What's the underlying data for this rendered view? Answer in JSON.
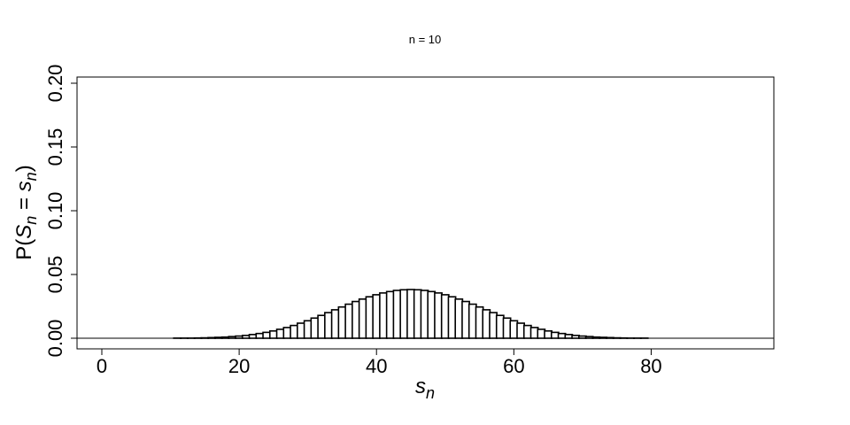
{
  "chart_data": {
    "type": "bar",
    "title": "n = 10",
    "xlabel": "s_n",
    "ylabel": "P(S_n = s_n)",
    "xlim": [
      0,
      90
    ],
    "ylim": [
      0,
      0.2
    ],
    "x_ticks": [
      "0",
      "20",
      "40",
      "60",
      "80"
    ],
    "y_ticks": [
      "0.00",
      "0.05",
      "0.10",
      "0.15",
      "0.20"
    ],
    "grid": false,
    "legend": "none",
    "x": [
      0,
      1,
      2,
      3,
      4,
      5,
      6,
      7,
      8,
      9,
      10,
      11,
      12,
      13,
      14,
      15,
      16,
      17,
      18,
      19,
      20,
      21,
      22,
      23,
      24,
      25,
      26,
      27,
      28,
      29,
      30,
      31,
      32,
      33,
      34,
      35,
      36,
      37,
      38,
      39,
      40,
      41,
      42,
      43,
      44,
      45,
      46,
      47,
      48,
      49,
      50,
      51,
      52,
      53,
      54,
      55,
      56,
      57,
      58,
      59,
      60,
      61,
      62,
      63,
      64,
      65,
      66,
      67,
      68,
      69,
      70,
      71,
      72,
      73,
      74,
      75,
      76,
      77,
      78,
      79,
      80,
      81,
      82,
      83,
      84,
      85,
      86,
      87,
      88,
      89,
      90
    ],
    "values": [
      0,
      0,
      0,
      0,
      0,
      0,
      0,
      0,
      0,
      0,
      0,
      0.0001,
      0.0001,
      0.0001,
      0.0002,
      0.0003,
      0.0005,
      0.0007,
      0.0009,
      0.0013,
      0.0017,
      0.0022,
      0.0029,
      0.0037,
      0.0046,
      0.0057,
      0.007,
      0.0084,
      0.01,
      0.0118,
      0.0137,
      0.0158,
      0.0179,
      0.0201,
      0.0223,
      0.0245,
      0.0267,
      0.0288,
      0.0307,
      0.0325,
      0.0341,
      0.0355,
      0.0366,
      0.0375,
      0.038,
      0.0382,
      0.038,
      0.0375,
      0.0366,
      0.0355,
      0.0341,
      0.0325,
      0.0307,
      0.0288,
      0.0267,
      0.0245,
      0.0223,
      0.0201,
      0.0179,
      0.0158,
      0.0137,
      0.0118,
      0.01,
      0.0084,
      0.007,
      0.0057,
      0.0046,
      0.0037,
      0.0029,
      0.0022,
      0.0017,
      0.0013,
      0.0009,
      0.0007,
      0.0005,
      0.0003,
      0.0002,
      0.0001,
      0.0001,
      0.0001,
      0,
      0,
      0,
      0,
      0,
      0,
      0,
      0,
      0,
      0,
      0
    ],
    "colors": {
      "bar_stroke": "#000000",
      "bar_fill": "#ffffff",
      "frame": "#000000"
    }
  }
}
